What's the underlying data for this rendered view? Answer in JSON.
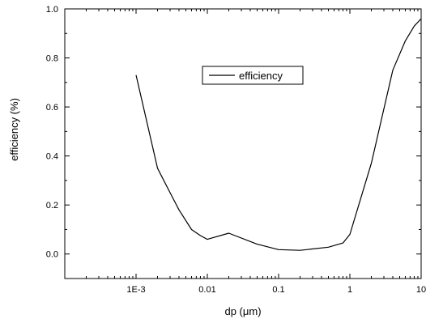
{
  "chart_data": {
    "type": "line",
    "xlabel": "dp (μm)",
    "ylabel": "efficiency (%)",
    "xscale": "log",
    "xlim": [
      0.0001,
      10
    ],
    "ylim": [
      -0.1,
      1.0
    ],
    "x_ticks": [
      0.001,
      0.01,
      0.1,
      1,
      10
    ],
    "x_tick_labels": [
      "1E-3",
      "0.01",
      "0.1",
      "1",
      "10"
    ],
    "y_ticks": [
      0.0,
      0.2,
      0.4,
      0.6,
      0.8,
      1.0
    ],
    "y_tick_labels": [
      "0.0",
      "0.2",
      "0.4",
      "0.6",
      "0.8",
      "1.0"
    ],
    "legend_position": "top-center",
    "grid": false,
    "series": [
      {
        "name": "efficiency",
        "color": "#000000",
        "x": [
          0.001,
          0.002,
          0.003,
          0.004,
          0.006,
          0.008,
          0.01,
          0.02,
          0.05,
          0.1,
          0.2,
          0.5,
          0.8,
          1,
          2,
          4,
          6,
          8,
          10
        ],
        "y": [
          0.73,
          0.35,
          0.25,
          0.18,
          0.1,
          0.075,
          0.06,
          0.085,
          0.04,
          0.018,
          0.015,
          0.028,
          0.045,
          0.08,
          0.37,
          0.75,
          0.87,
          0.93,
          0.96
        ]
      }
    ]
  }
}
